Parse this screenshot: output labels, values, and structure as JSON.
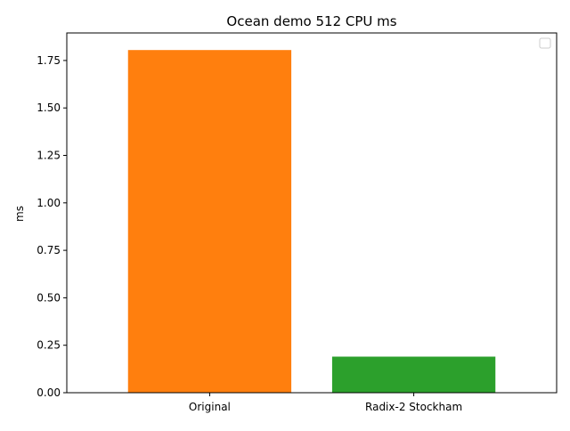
{
  "chart_data": {
    "type": "bar",
    "title": "Ocean demo 512 CPU ms",
    "xlabel": "",
    "ylabel": "ms",
    "categories": [
      "Original",
      "Radix-2 Stockham"
    ],
    "values": [
      1.805,
      0.19
    ],
    "bar_colors": [
      "#ff7f0e",
      "#2ca02c"
    ],
    "ylim": [
      0,
      1.895
    ],
    "yticks": [
      0.0,
      0.25,
      0.5,
      0.75,
      1.0,
      1.25,
      1.5,
      1.75
    ],
    "ytick_labels": [
      "0.00",
      "0.25",
      "0.50",
      "0.75",
      "1.00",
      "1.25",
      "1.50",
      "1.75"
    ],
    "grid": false,
    "legend": {
      "placement": "top-right",
      "entries": []
    }
  }
}
